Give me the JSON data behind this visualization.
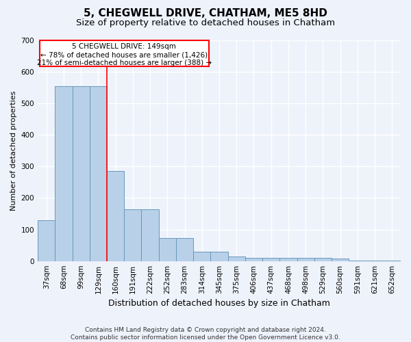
{
  "title": "5, CHEGWELL DRIVE, CHATHAM, ME5 8HD",
  "subtitle": "Size of property relative to detached houses in Chatham",
  "xlabel": "Distribution of detached houses by size in Chatham",
  "ylabel": "Number of detached properties",
  "categories": [
    "37sqm",
    "68sqm",
    "99sqm",
    "129sqm",
    "160sqm",
    "191sqm",
    "222sqm",
    "252sqm",
    "283sqm",
    "314sqm",
    "345sqm",
    "375sqm",
    "406sqm",
    "437sqm",
    "468sqm",
    "498sqm",
    "529sqm",
    "560sqm",
    "591sqm",
    "621sqm",
    "652sqm"
  ],
  "values": [
    130,
    555,
    555,
    555,
    285,
    165,
    165,
    72,
    72,
    30,
    30,
    15,
    10,
    10,
    10,
    10,
    10,
    7,
    2,
    1,
    1
  ],
  "bar_color": "#b8d0e8",
  "bar_edgecolor": "#6699bb",
  "red_line_x": 3.5,
  "ylim": [
    0,
    700
  ],
  "yticks": [
    0,
    100,
    200,
    300,
    400,
    500,
    600,
    700
  ],
  "annotation_line1": "5 CHEGWELL DRIVE: 149sqm",
  "annotation_line2": "← 78% of detached houses are smaller (1,426)",
  "annotation_line3": "21% of semi-detached houses are larger (388) →",
  "footer_text": "Contains HM Land Registry data © Crown copyright and database right 2024.\nContains public sector information licensed under the Open Government Licence v3.0.",
  "background_color": "#eef2fb",
  "plot_background": "#eef2fb",
  "grid_color": "#ffffff",
  "title_fontsize": 11,
  "subtitle_fontsize": 9.5,
  "ylabel_fontsize": 8,
  "xlabel_fontsize": 9,
  "tick_fontsize": 7.5,
  "footer_fontsize": 6.5,
  "annot_fontsize": 7.5
}
